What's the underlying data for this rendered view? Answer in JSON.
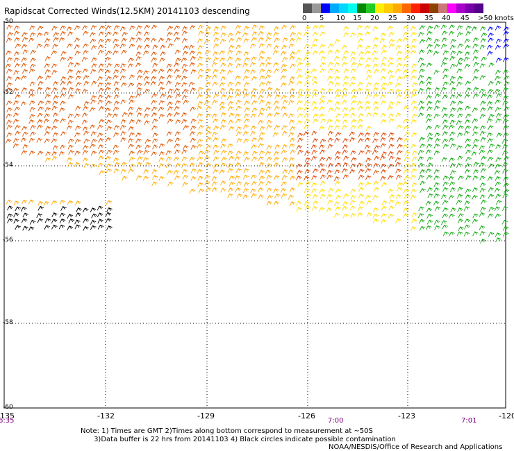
{
  "title": "Rapidscat Corrected Winds(12.5KM) 20141103 descending",
  "legend": {
    "colors": [
      "#555555",
      "#999999",
      "#0000ff",
      "#00aaff",
      "#00d8ff",
      "#00ffee",
      "#008800",
      "#22cc22",
      "#ffee00",
      "#ffcc00",
      "#ffaa00",
      "#ff6600",
      "#ff2200",
      "#cc0000",
      "#884400",
      "#cc7777",
      "#ff00ff",
      "#aa00cc",
      "#7700aa",
      "#550088"
    ],
    "labels": [
      "0",
      "5",
      "10",
      "15",
      "20",
      "25",
      "30",
      "35",
      "40",
      "45",
      ">50 knots"
    ]
  },
  "axes": {
    "x_ticks": [
      "-135",
      "-132",
      "-129",
      "-126",
      "-123",
      "-120"
    ],
    "y_ticks": [
      "-50",
      "-52",
      "-54",
      "-56",
      "-58",
      "-60"
    ]
  },
  "times": [
    "6:35",
    "7:00",
    "7:01"
  ],
  "note": "Note: 1) Times are GMT 2)Times along bottom correspond to measurement at ~50S\n      3)Data buffer is 22 hrs from 20141103 4) Black circles indicate possible contamination",
  "credit": "NOAA/NESDIS/Office of Research and Applications"
}
